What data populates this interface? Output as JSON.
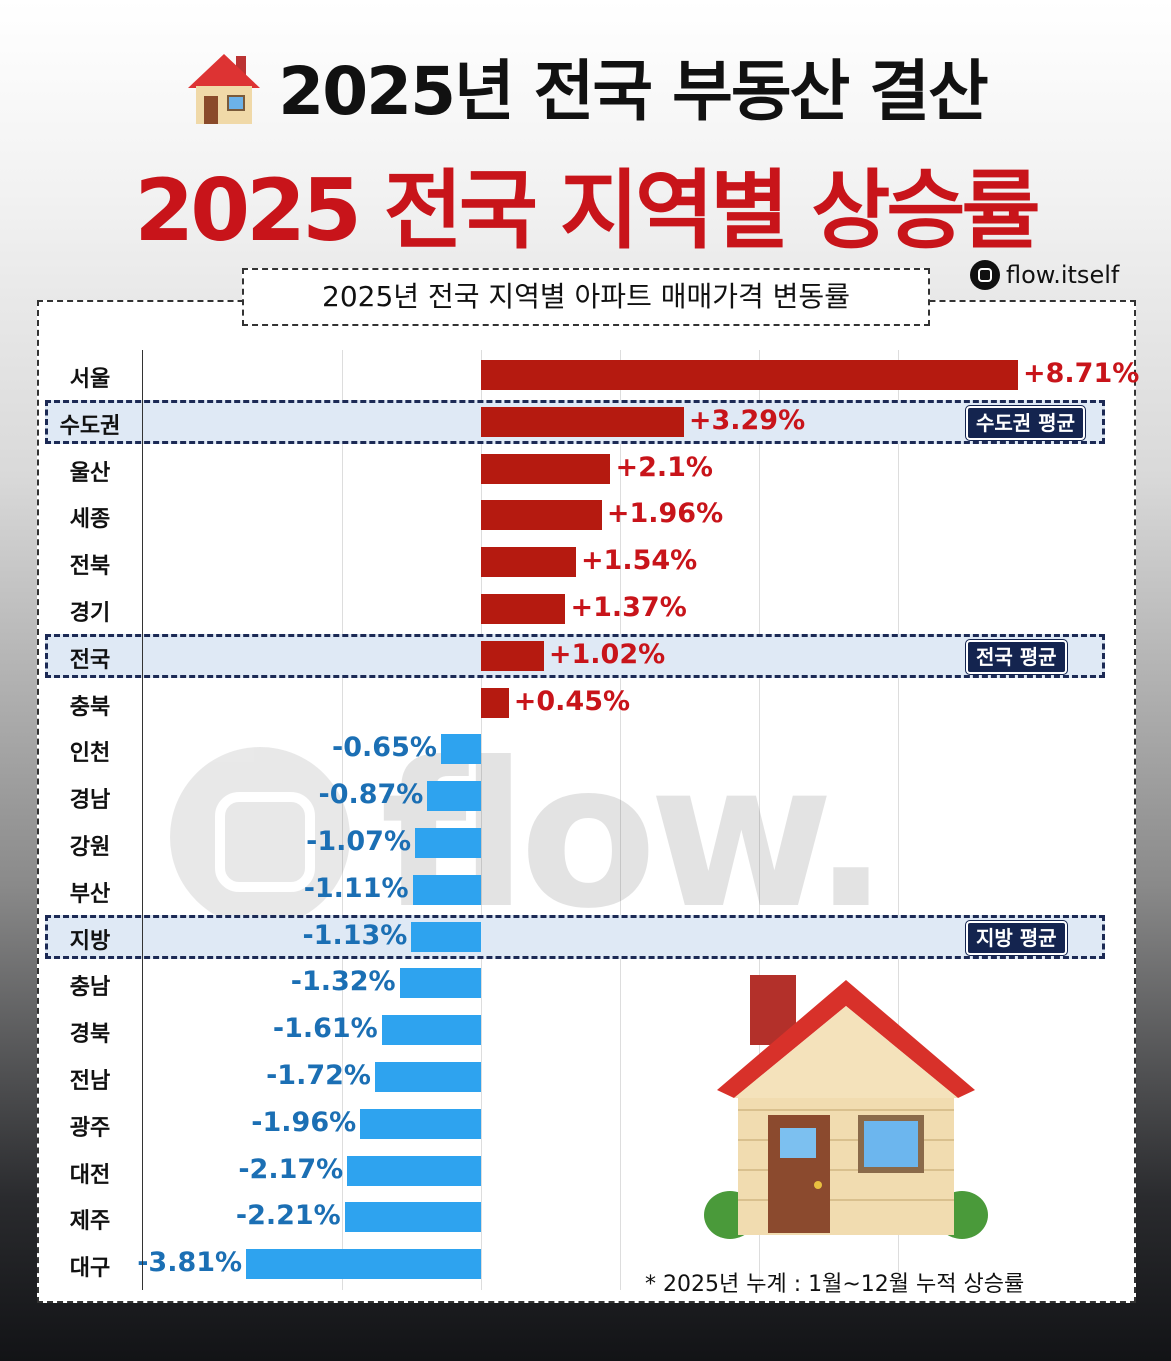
{
  "header": {
    "title": "2025년 전국 부동산 결산",
    "subtitle": "2025 전국 지역별 상승률",
    "title_icon": "house-emoji"
  },
  "handle": "flow.itself",
  "watermark": "flow.",
  "footnote": "* 2025년 누계 :  1월~12월 누적 상승률",
  "colors": {
    "positive": "#b51a10",
    "positive_text": "#c8141a",
    "negative": "#2ea3ef",
    "negative_text": "#1b6fb4",
    "highlight": "#dfe9f5",
    "badge": "#14244f"
  },
  "chart_data": {
    "type": "bar",
    "orientation": "horizontal",
    "title": "2025년 전국 지역별 아파트 매매가격 변동률",
    "unit": "%",
    "xlim": [
      -3.81,
      8.71
    ],
    "grid": true,
    "categories": [
      "서울",
      "수도권",
      "울산",
      "세종",
      "전북",
      "경기",
      "전국",
      "충북",
      "인천",
      "경남",
      "강원",
      "부산",
      "지방",
      "충남",
      "경북",
      "전남",
      "광주",
      "대전",
      "제주",
      "대구"
    ],
    "values": [
      8.71,
      3.29,
      2.1,
      1.96,
      1.54,
      1.37,
      1.02,
      0.45,
      -0.65,
      -0.87,
      -1.07,
      -1.11,
      -1.13,
      -1.32,
      -1.61,
      -1.72,
      -1.96,
      -2.17,
      -2.21,
      -3.81
    ],
    "labels": [
      "+8.71%",
      "+3.29%",
      "+2.1%",
      "+1.96%",
      "+1.54%",
      "+1.37%",
      "+1.02%",
      "+0.45%",
      "-0.65%",
      "-0.87%",
      "-1.07%",
      "-1.11%",
      "-1.13%",
      "-1.32%",
      "-1.61%",
      "-1.72%",
      "-1.96%",
      "-2.17%",
      "-2.21%",
      "-3.81%"
    ],
    "highlights": [
      {
        "index": 1,
        "badge": "수도권 평균"
      },
      {
        "index": 6,
        "badge": "전국 평균"
      },
      {
        "index": 12,
        "badge": "지방 평균"
      }
    ]
  }
}
